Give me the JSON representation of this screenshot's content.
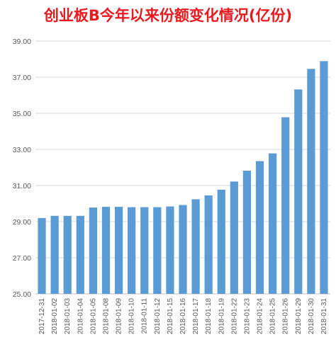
{
  "chart_data": {
    "type": "bar",
    "title": "创业板B今年以来份额变化情况(亿份)",
    "xlabel": "",
    "ylabel": "",
    "ylim": [
      25,
      39
    ],
    "y_ticks": [
      "25.00",
      "27.00",
      "29.00",
      "31.00",
      "33.00",
      "35.00",
      "37.00",
      "39.00"
    ],
    "grid": true,
    "legend": "none",
    "bar_color": "#5b9bd5",
    "gridline_color": "#d9d9d9",
    "title_color": "#e8191f",
    "categories": [
      "2017-12-31",
      "2018-01-02",
      "2018-01-03",
      "2018-01-04",
      "2018-01-05",
      "2018-01-08",
      "2018-01-09",
      "2018-01-10",
      "2018-01-11",
      "2018-01-12",
      "2018-01-15",
      "2018-01-16",
      "2018-01-17",
      "2018-01-18",
      "2018-01-19",
      "2018-01-22",
      "2018-01-23",
      "2018-01-24",
      "2018-01-25",
      "2018-01-26",
      "2018-01-29",
      "2018-01-30",
      "2018-01-31"
    ],
    "values": [
      29.2,
      29.32,
      29.32,
      29.32,
      29.78,
      29.82,
      29.82,
      29.8,
      29.8,
      29.8,
      29.84,
      29.92,
      30.24,
      30.45,
      30.77,
      31.22,
      31.82,
      32.35,
      32.78,
      34.78,
      36.32,
      37.46,
      37.89
    ]
  }
}
